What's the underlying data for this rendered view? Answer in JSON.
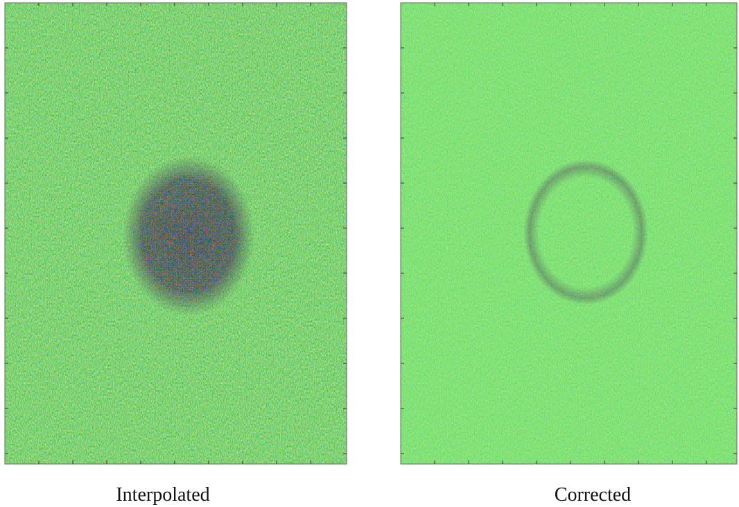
{
  "panels": [
    {
      "caption": "Interpolated"
    },
    {
      "caption": "Corrected"
    }
  ]
}
